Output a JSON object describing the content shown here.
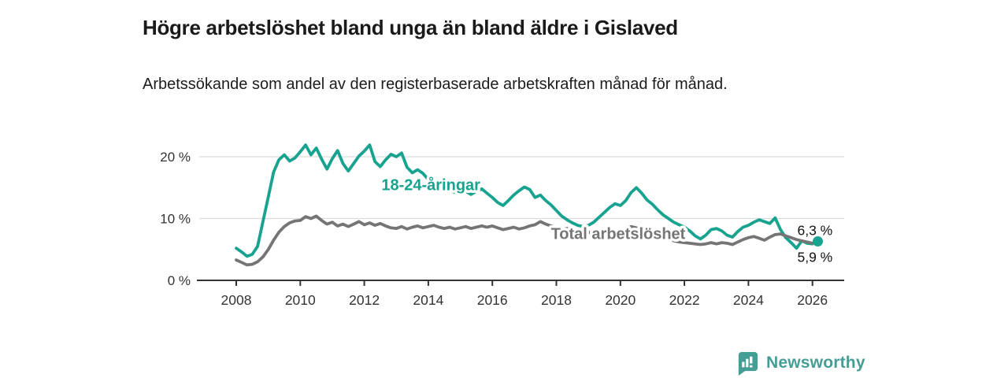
{
  "header": {
    "title": "Högre arbetslöshet bland unga än bland äldre i Gislaved",
    "subtitle": "Arbetssökande som andel av den registerbaserade arbetskraften månad för månad."
  },
  "footer": {
    "brand": "Newsworthy",
    "brand_color": "#449e95",
    "logo_icon": "newsworthy-speech-bubble-bar-chart-icon"
  },
  "colors": {
    "young_line": "#17a38f",
    "total_line": "#757575",
    "axis": "#333333",
    "gridline": "#dcdcdc",
    "end_label": "#111111",
    "background": "#ffffff"
  },
  "chart_data": {
    "type": "line",
    "title": "Högre arbetslöshet bland unga än bland äldre i Gislaved",
    "xlabel": "",
    "ylabel": "",
    "x_start": 2008,
    "x_step_years": 0.1666667,
    "xlim": [
      2008,
      2027
    ],
    "ylim": [
      0,
      24
    ],
    "grid": "horizontal",
    "legend": "inline-labels",
    "xticks": [
      2008,
      2010,
      2012,
      2014,
      2016,
      2018,
      2020,
      2022,
      2024,
      2026
    ],
    "yticks": [
      {
        "label": "0 %",
        "value": 0,
        "is_axis": true
      },
      {
        "label": "10 %",
        "value": 10,
        "is_axis": false
      },
      {
        "label": "20 %",
        "value": 20,
        "is_axis": false
      }
    ],
    "series": [
      {
        "name": "18-24-åringar",
        "color": "#17a38f",
        "label": {
          "text": "18-24-åringar",
          "x": 2014.08,
          "y": 15.5
        },
        "end_label": "6,3 %",
        "end_label_dy": -8,
        "end_dot": true,
        "values": [
          5.2,
          4.6,
          3.9,
          4.2,
          5.5,
          9.5,
          13.5,
          17.5,
          19.5,
          20.3,
          19.3,
          19.8,
          20.8,
          21.9,
          20.3,
          21.4,
          19.6,
          18.0,
          19.7,
          21.0,
          18.9,
          17.7,
          18.9,
          20.1,
          20.9,
          21.9,
          19.2,
          18.4,
          19.5,
          20.4,
          20.0,
          20.6,
          18.3,
          17.4,
          17.9,
          17.3,
          16.3,
          15.4,
          14.8,
          15.2,
          14.6,
          14.2,
          14.9,
          14.4,
          13.9,
          14.4,
          14.8,
          14.1,
          13.4,
          12.6,
          12.1,
          12.9,
          13.8,
          14.5,
          15.1,
          14.7,
          13.4,
          13.8,
          12.9,
          12.2,
          11.3,
          10.4,
          9.8,
          9.3,
          8.9,
          8.7,
          8.9,
          9.4,
          10.2,
          11.0,
          11.8,
          12.4,
          12.1,
          12.9,
          14.2,
          15.0,
          14.1,
          13.0,
          12.3,
          11.4,
          10.6,
          10.0,
          9.4,
          9.0,
          8.6,
          8.0,
          7.2,
          6.7,
          7.3,
          8.2,
          8.4,
          8.0,
          7.3,
          7.0,
          7.9,
          8.6,
          8.9,
          9.4,
          9.8,
          9.5,
          9.2,
          10.1,
          8.2,
          6.9,
          6.1,
          5.2,
          6.4,
          6.0,
          5.9,
          6.3
        ]
      },
      {
        "name": "Total arbetslöshet",
        "color": "#757575",
        "label": {
          "text": "Total arbetslöshet",
          "x": 2019.93,
          "y": 7.6
        },
        "end_label": "5,9 %",
        "end_label_dy": 23,
        "end_dot": false,
        "values": [
          3.3,
          2.9,
          2.5,
          2.6,
          3.0,
          3.8,
          5.0,
          6.5,
          7.8,
          8.7,
          9.3,
          9.6,
          9.7,
          10.3,
          10.0,
          10.4,
          9.7,
          9.1,
          9.4,
          8.8,
          9.1,
          8.7,
          9.1,
          9.5,
          9.0,
          9.3,
          8.9,
          9.2,
          8.8,
          8.5,
          8.4,
          8.7,
          8.3,
          8.6,
          8.8,
          8.5,
          8.7,
          8.9,
          8.6,
          8.4,
          8.6,
          8.3,
          8.5,
          8.7,
          8.4,
          8.6,
          8.8,
          8.6,
          8.8,
          8.5,
          8.2,
          8.4,
          8.6,
          8.3,
          8.5,
          8.8,
          9.0,
          9.5,
          9.1,
          8.8,
          8.5,
          8.2,
          8.4,
          8.1,
          7.9,
          8.0,
          7.8,
          7.6,
          7.7,
          7.5,
          7.6,
          7.8,
          7.9,
          8.3,
          8.7,
          8.5,
          8.3,
          8.1,
          7.9,
          7.6,
          7.2,
          6.8,
          6.4,
          6.2,
          6.1,
          6.0,
          5.9,
          5.8,
          5.9,
          6.1,
          5.9,
          6.1,
          6.0,
          5.8,
          6.2,
          6.6,
          6.9,
          7.1,
          6.8,
          6.5,
          7.0,
          7.4,
          7.5,
          7.2,
          6.9,
          6.6,
          6.4,
          6.2,
          6.0,
          5.9
        ]
      }
    ]
  }
}
